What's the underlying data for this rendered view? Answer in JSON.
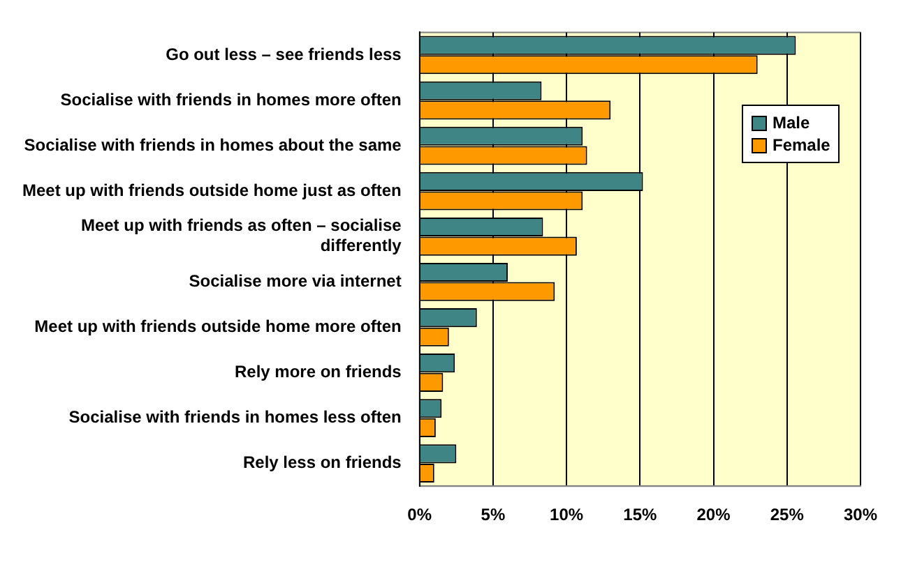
{
  "chart_data": {
    "type": "bar",
    "orientation": "horizontal",
    "categories": [
      "Go out less – see friends less",
      "Socialise with friends in homes more often",
      "Socialise with friends in homes about the same",
      "Meet up with friends outside home just as often",
      "Meet up with friends as often – socialise differently",
      "Socialise more via internet",
      "Meet up with friends outside home more often",
      "Rely more on friends",
      "Socialise with friends in homes less often",
      "Rely less on friends"
    ],
    "series": [
      {
        "name": "Male",
        "color": "#3f8585",
        "values": [
          25.6,
          8.3,
          11.1,
          15.2,
          8.4,
          6.0,
          3.9,
          2.4,
          1.5,
          2.5
        ]
      },
      {
        "name": "Female",
        "color": "#ff9900",
        "values": [
          23.0,
          13.0,
          11.4,
          11.1,
          10.7,
          9.2,
          2.0,
          1.6,
          1.1,
          1.0
        ]
      }
    ],
    "xlim": [
      0,
      30
    ],
    "xticks": [
      {
        "value": 0,
        "label": "0%"
      },
      {
        "value": 5,
        "label": "5%"
      },
      {
        "value": 10,
        "label": "10%"
      },
      {
        "value": 15,
        "label": "15%"
      },
      {
        "value": 20,
        "label": "20%"
      },
      {
        "value": 25,
        "label": "25%"
      },
      {
        "value": 30,
        "label": "30%"
      }
    ],
    "grid": "x",
    "legend": "right"
  }
}
